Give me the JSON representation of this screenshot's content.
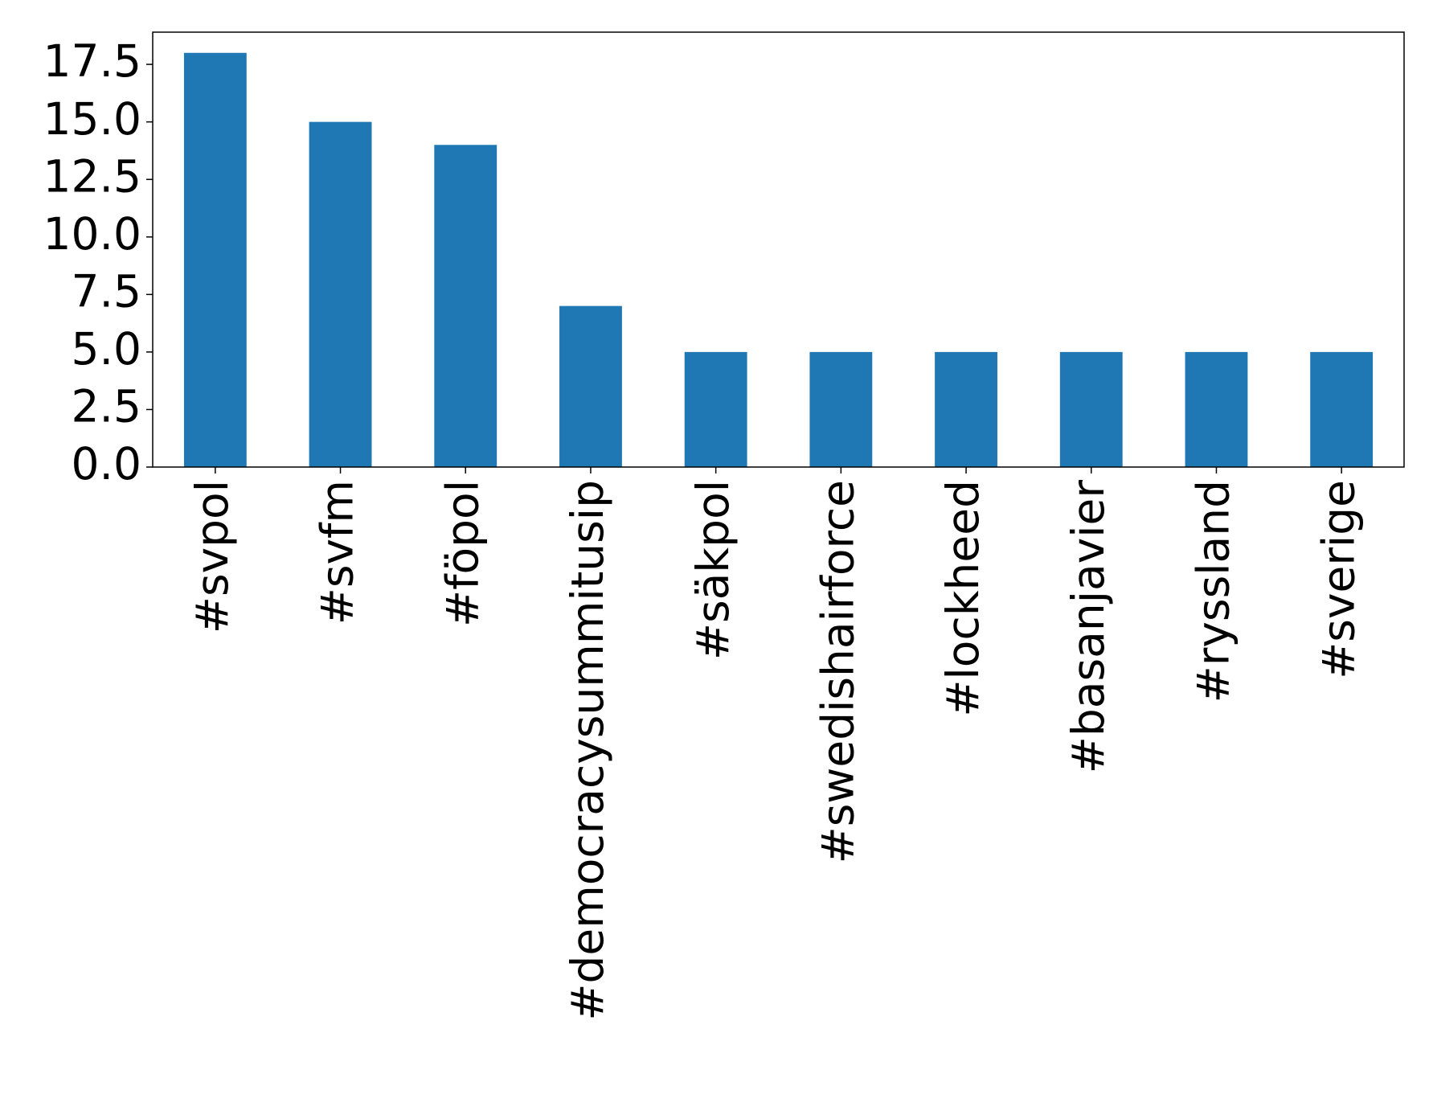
{
  "chart_data": {
    "type": "bar",
    "categories": [
      "#svpol",
      "#svfm",
      "#föpol",
      "#democracysummitusip",
      "#säkpol",
      "#swedishairforce",
      "#lockheed",
      "#basanjavier",
      "#ryssland",
      "#sverige"
    ],
    "values": [
      18,
      15,
      14,
      7,
      5,
      5,
      5,
      5,
      5,
      5
    ],
    "color": "#1f77b4",
    "ylim": [
      0,
      18.9
    ],
    "yticks": [
      {
        "value": 0,
        "label": "0.0"
      },
      2.5,
      {
        "value": 5,
        "label": "5.0"
      },
      7.5,
      {
        "value": 10,
        "label": "10.0"
      },
      12.5,
      {
        "value": 15,
        "label": "15.0"
      },
      17.5
    ],
    "grid": false
  }
}
